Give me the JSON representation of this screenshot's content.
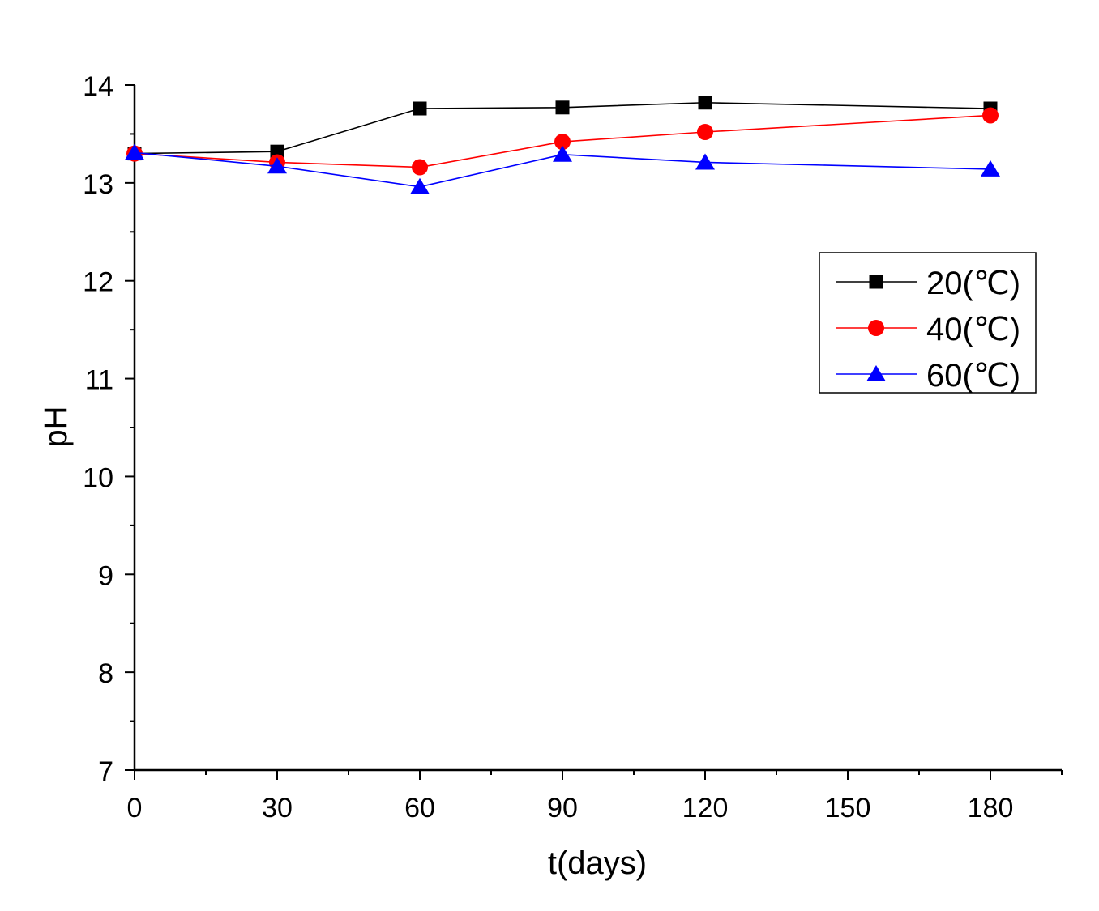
{
  "chart_data": {
    "type": "line",
    "title": "",
    "xlabel": "t(days)",
    "ylabel": "pH",
    "xlim": [
      0,
      195
    ],
    "ylim": [
      7,
      14
    ],
    "xticks": [
      0,
      30,
      60,
      90,
      120,
      150,
      180
    ],
    "yticks": [
      7,
      8,
      9,
      10,
      11,
      12,
      13,
      14
    ],
    "grid": false,
    "legend_position": "upper-right",
    "x": [
      0,
      30,
      60,
      90,
      120,
      180
    ],
    "series": [
      {
        "name": "20(℃)",
        "color": "#000000",
        "marker": "square",
        "values": [
          13.3,
          13.32,
          13.76,
          13.77,
          13.82,
          13.76
        ]
      },
      {
        "name": "40(℃)",
        "color": "#ff0000",
        "marker": "circle",
        "values": [
          13.3,
          13.21,
          13.16,
          13.42,
          13.52,
          13.69
        ]
      },
      {
        "name": "60(℃)",
        "color": "#0000ff",
        "marker": "triangle",
        "values": [
          13.31,
          13.17,
          12.96,
          13.29,
          13.21,
          13.14
        ]
      }
    ]
  }
}
